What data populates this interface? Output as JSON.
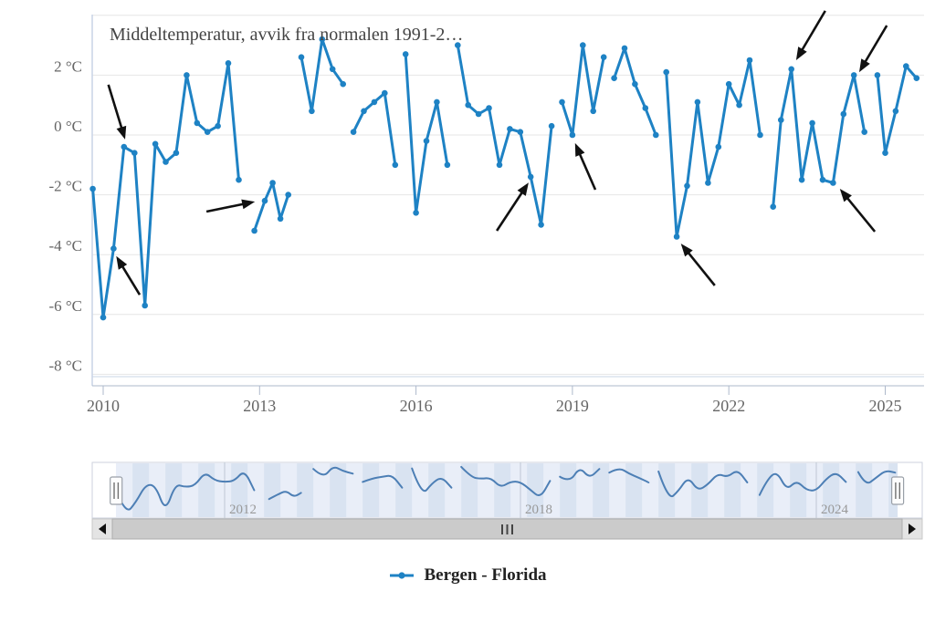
{
  "chart_data": {
    "type": "line",
    "title": "Middeltemperatur, avvik fra normalen 1991-2…",
    "xlabel": "",
    "ylabel": "",
    "xlim": [
      2009.6,
      2025.9
    ],
    "ylim": [
      -8.1,
      4.0
    ],
    "grid": true,
    "legend_position": "bottom-center",
    "x_axis": {
      "tick_labels": [
        "2010",
        "2013",
        "2016",
        "2019",
        "2022",
        "2025"
      ],
      "tick_values": [
        2010,
        2013,
        2016,
        2019,
        2022,
        2025
      ]
    },
    "y_axis": {
      "tick_labels": [
        "2 °C",
        "0 °C",
        "-2 °C",
        "-4 °C",
        "-6 °C",
        "-8 °C"
      ],
      "tick_values": [
        2,
        0,
        -2,
        -4,
        -6,
        -8
      ],
      "grid_values": [
        4,
        2,
        0,
        -2,
        -4,
        -6,
        -8
      ]
    },
    "series": [
      {
        "name": "Bergen - Florida",
        "color": "#1e82c4",
        "points": [
          [
            2009.8,
            -1.8
          ],
          [
            2010.0,
            -6.1
          ],
          [
            2010.2,
            -3.8
          ],
          [
            2010.4,
            -0.4
          ],
          [
            2010.6,
            -0.6
          ],
          [
            2010.8,
            -5.7
          ],
          [
            2011.0,
            -0.3
          ],
          [
            2011.2,
            -0.9
          ],
          [
            2011.4,
            -0.6
          ],
          [
            2011.6,
            2.0
          ],
          [
            2011.8,
            0.4
          ],
          [
            2012.0,
            0.1
          ],
          [
            2012.2,
            0.3
          ],
          [
            2012.4,
            2.4
          ],
          [
            2012.6,
            -1.5
          ],
          null,
          [
            2012.9,
            -3.2
          ],
          [
            2013.1,
            -2.2
          ],
          [
            2013.25,
            -1.6
          ],
          [
            2013.4,
            -2.8
          ],
          [
            2013.55,
            -2.0
          ],
          null,
          [
            2013.8,
            2.6
          ],
          [
            2014.0,
            0.8
          ],
          [
            2014.2,
            3.2
          ],
          [
            2014.4,
            2.2
          ],
          [
            2014.6,
            1.7
          ],
          null,
          [
            2014.8,
            0.1
          ],
          [
            2015.0,
            0.8
          ],
          [
            2015.2,
            1.1
          ],
          [
            2015.4,
            1.4
          ],
          [
            2015.6,
            -1.0
          ],
          null,
          [
            2015.8,
            2.7
          ],
          [
            2016.0,
            -2.6
          ],
          [
            2016.2,
            -0.2
          ],
          [
            2016.4,
            1.1
          ],
          [
            2016.6,
            -1.0
          ],
          null,
          [
            2016.8,
            3.0
          ],
          [
            2017.0,
            1.0
          ],
          [
            2017.2,
            0.7
          ],
          [
            2017.4,
            0.9
          ],
          [
            2017.6,
            -1.0
          ],
          [
            2017.8,
            0.2
          ],
          [
            2018.0,
            0.1
          ],
          [
            2018.2,
            -1.4
          ],
          [
            2018.4,
            -3.0
          ],
          [
            2018.6,
            0.3
          ],
          null,
          [
            2018.8,
            1.1
          ],
          [
            2019.0,
            0.0
          ],
          [
            2019.2,
            3.0
          ],
          [
            2019.4,
            0.8
          ],
          [
            2019.6,
            2.6
          ],
          null,
          [
            2019.8,
            1.9
          ],
          [
            2020.0,
            2.9
          ],
          [
            2020.2,
            1.7
          ],
          [
            2020.4,
            0.9
          ],
          [
            2020.6,
            0.0
          ],
          null,
          [
            2020.8,
            2.1
          ],
          [
            2021.0,
            -3.4
          ],
          [
            2021.2,
            -1.7
          ],
          [
            2021.4,
            1.1
          ],
          [
            2021.6,
            -1.6
          ],
          [
            2021.8,
            -0.4
          ],
          [
            2022.0,
            1.7
          ],
          [
            2022.2,
            1.0
          ],
          [
            2022.4,
            2.5
          ],
          [
            2022.6,
            0.0
          ],
          null,
          [
            2022.85,
            -2.4
          ],
          [
            2023.0,
            0.5
          ],
          [
            2023.2,
            2.2
          ],
          [
            2023.4,
            -1.5
          ],
          [
            2023.6,
            0.4
          ],
          [
            2023.8,
            -1.5
          ],
          [
            2024.0,
            -1.6
          ],
          [
            2024.2,
            0.7
          ],
          [
            2024.4,
            2.0
          ],
          [
            2024.6,
            0.1
          ],
          null,
          [
            2024.85,
            2.0
          ],
          [
            2025.0,
            -0.6
          ],
          [
            2025.2,
            0.8
          ],
          [
            2025.4,
            2.3
          ],
          [
            2025.6,
            1.9
          ]
        ]
      }
    ],
    "annotations": [
      {
        "from": [
          2010.1,
          1.68
        ],
        "to": [
          2010.42,
          -0.15
        ]
      },
      {
        "from": [
          2010.7,
          -5.34
        ],
        "to": [
          2010.25,
          -4.05
        ]
      },
      {
        "from": [
          2011.98,
          -2.56
        ],
        "to": [
          2012.91,
          -2.23
        ]
      },
      {
        "from": [
          2017.55,
          -3.2
        ],
        "to": [
          2018.16,
          -1.59
        ]
      },
      {
        "from": [
          2019.44,
          -1.83
        ],
        "to": [
          2019.05,
          -0.27
        ]
      },
      {
        "from": [
          2021.73,
          -5.03
        ],
        "to": [
          2021.08,
          -3.63
        ]
      },
      {
        "from": [
          2023.85,
          4.15
        ],
        "to": [
          2023.29,
          2.5
        ]
      },
      {
        "from": [
          2025.03,
          3.66
        ],
        "to": [
          2024.5,
          2.1
        ]
      },
      {
        "from": [
          2024.8,
          -3.23
        ],
        "to": [
          2024.13,
          -1.8
        ]
      }
    ]
  },
  "navigator": {
    "range": [
      2009.8,
      2025.65
    ],
    "year_labels": [
      {
        "text": "2012",
        "year": 2012
      },
      {
        "text": "2018",
        "year": 2018
      },
      {
        "text": "2024",
        "year": 2024
      }
    ]
  },
  "scrollbar": {
    "grip": "III",
    "left_arrow": "◄",
    "right_arrow": "►"
  },
  "legend": {
    "series_label": "Bergen - Florida"
  },
  "colors": {
    "series": "#1e82c4",
    "navigator_line": "#4d7fb5",
    "navigator_mask": "#d9e3f1",
    "navigator_stripe": "#e9eef8",
    "navigator_outline": "#ccd2dc",
    "navigator_gridline": "#bfc7d3",
    "grid": "#e6e6e6",
    "axis_line": "#c9d4e6",
    "x_axis_line": "#aeb9cb",
    "arrow": "#111111",
    "scrollbar_track": "#d9d9d9",
    "scrollbar_button": "#e4e4e4",
    "scrollbar_thumb": "#cbcbcb",
    "scrollbar_thumb_border": "#aeaeae",
    "scrollbar_grip": "#444444",
    "handle_fill": "#fdfdfd",
    "handle_border": "#9aa0a8",
    "handle_lines": "#707070"
  }
}
